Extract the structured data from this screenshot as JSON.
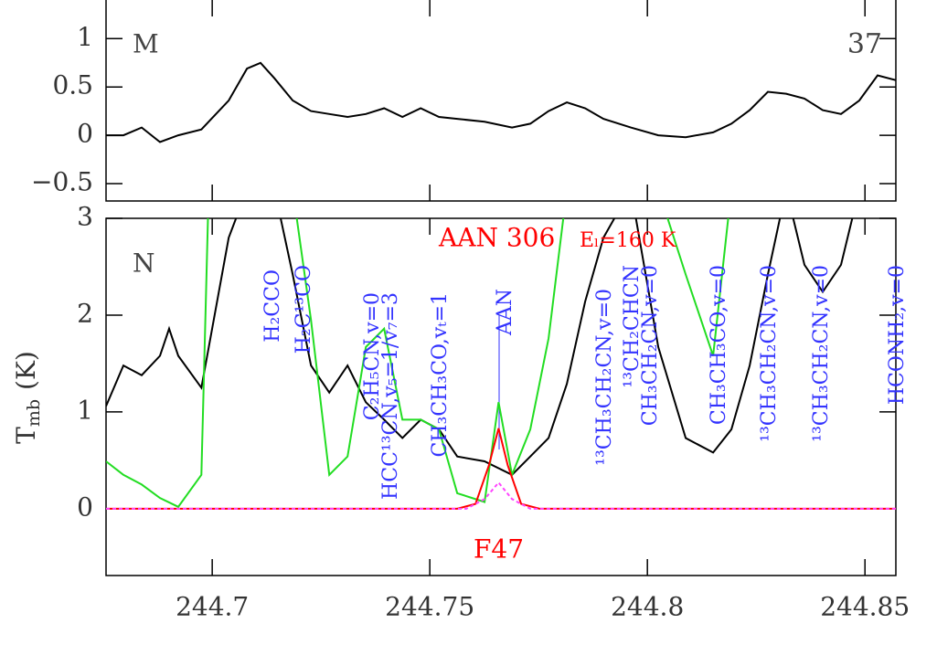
{
  "chart_data": [
    {
      "type": "line",
      "panel_label": "M",
      "corner_label": "37",
      "xlim": [
        244.6756,
        244.8571
      ],
      "ylim": [
        -0.68,
        1.4
      ],
      "xticks": [
        244.7,
        244.75,
        244.8,
        244.85
      ],
      "yticks": [
        {
          "value": -0.5,
          "label": "−0.5"
        },
        0,
        0.5,
        1
      ],
      "series": [
        {
          "color": "#000000",
          "x": [
            244.6756,
            244.6796,
            244.6838,
            244.688,
            244.6922,
            244.6975,
            244.7038,
            244.708,
            244.7111,
            244.7143,
            244.7185,
            244.7227,
            244.7269,
            244.7311,
            244.7353,
            244.7395,
            244.7437,
            244.7479,
            244.7521,
            244.7563,
            244.7626,
            244.7689,
            244.7731,
            244.7773,
            244.7815,
            244.7857,
            244.7899,
            244.7962,
            244.8025,
            244.8088,
            244.8151,
            244.8193,
            244.8235,
            244.8277,
            244.8319,
            244.8361,
            244.8403,
            244.8445,
            244.8487,
            244.8529,
            244.8571
          ],
          "values": [
            0,
            0,
            0.08,
            -0.07,
            0,
            0.06,
            0.36,
            0.69,
            0.75,
            0.59,
            0.36,
            0.25,
            0.22,
            0.19,
            0.22,
            0.28,
            0.19,
            0.28,
            0.19,
            0.17,
            0.14,
            0.08,
            0.12,
            0.25,
            0.34,
            0.28,
            0.17,
            0.08,
            0,
            -0.02,
            0.03,
            0.12,
            0.26,
            0.45,
            0.43,
            0.38,
            0.26,
            0.22,
            0.36,
            0.62,
            0.57
          ]
        }
      ]
    },
    {
      "type": "line",
      "panel_label": "N",
      "ylabel": {
        "main": "T",
        "sub": "mb",
        "unit": "(K)"
      },
      "xlim": [
        244.6756,
        244.8571
      ],
      "ylim": [
        -0.69,
        3
      ],
      "xticks": [
        244.7,
        244.75,
        244.8,
        244.85
      ],
      "yticks": [
        0,
        1,
        2,
        3
      ],
      "series": [
        {
          "color": "#000000",
          "x": [
            244.6756,
            244.6796,
            244.6838,
            244.688,
            244.6901,
            244.6922,
            244.6975,
            244.7038,
            244.708,
            244.7111,
            244.7143,
            244.7185,
            244.7227,
            244.7269,
            244.7311,
            244.7353,
            244.7395,
            244.7437,
            244.7479,
            244.7521,
            244.7563,
            244.7626,
            244.7689,
            244.7731,
            244.7773,
            244.7815,
            244.7857,
            244.7899,
            244.7962,
            244.8025,
            244.8088,
            244.8151,
            244.8193,
            244.8235,
            244.8277,
            244.8319,
            244.8361,
            244.8403,
            244.8445,
            244.8487,
            244.8529,
            244.8571
          ],
          "values": [
            1.06,
            1.48,
            1.38,
            1.58,
            1.86,
            1.58,
            1.25,
            2.8,
            3.3,
            3.3,
            3.3,
            2.42,
            1.48,
            1.2,
            1.48,
            1.1,
            0.92,
            0.73,
            0.92,
            0.82,
            0.54,
            0.49,
            0.35,
            0.54,
            0.73,
            1.29,
            2.14,
            2.8,
            3.3,
            1.67,
            0.73,
            0.58,
            0.82,
            1.48,
            2.42,
            3.3,
            2.52,
            2.24,
            2.52,
            3.3,
            3.3,
            3.3
          ]
        },
        {
          "color": "#22dd22",
          "x": [
            244.6756,
            244.6796,
            244.6838,
            244.688,
            244.6922,
            244.6975,
            244.6992,
            244.7038,
            244.708,
            244.7111,
            244.7143,
            244.7185,
            244.7227,
            244.7269,
            244.7311,
            244.7353,
            244.7395,
            244.7437,
            244.7479,
            244.7521,
            244.7563,
            244.7626,
            244.7658,
            244.7689,
            244.7731,
            244.7773,
            244.7815,
            244.7857,
            244.7899,
            244.7962,
            244.8025,
            244.8088,
            244.8151,
            244.8193,
            244.8235,
            244.8277,
            244.8319,
            244.8361,
            244.8403,
            244.8445,
            244.8487,
            244.8529,
            244.8571
          ],
          "values": [
            0.49,
            0.35,
            0.25,
            0.11,
            0.02,
            0.35,
            3.3,
            3.3,
            3.3,
            3.3,
            3.3,
            3.3,
            1.95,
            0.35,
            0.54,
            1.67,
            1.86,
            0.92,
            0.92,
            0.82,
            0.16,
            0.07,
            1.1,
            0.35,
            0.82,
            1.76,
            3.3,
            3.3,
            3.3,
            3.3,
            3.3,
            2.42,
            1.58,
            3.3,
            3.3,
            3.3,
            3.3,
            3.3,
            3.3,
            3.3,
            3.3,
            3.3,
            3.3
          ]
        },
        {
          "color": "#ff0000",
          "x": [
            244.6756,
            244.7563,
            244.7605,
            244.7636,
            244.7658,
            244.7679,
            244.771,
            244.7752,
            244.8571
          ],
          "values": [
            0,
            0,
            0.05,
            0.45,
            0.83,
            0.45,
            0.05,
            0,
            0
          ]
        },
        {
          "color": "#ff44ff",
          "dashed": true,
          "x": [
            244.6756,
            244.7584,
            244.7626,
            244.7658,
            244.7689,
            244.7731,
            244.8571
          ],
          "values": [
            0,
            0,
            0.1,
            0.27,
            0.1,
            0,
            0
          ]
        }
      ],
      "annotations": [
        {
          "text": "H₂CCO",
          "color": "#3333ff"
        },
        {
          "text": "H₂C¹³CO",
          "color": "#3333ff"
        },
        {
          "text": "C₂H₅CN,v=0",
          "color": "#3333ff"
        },
        {
          "text": "HCC¹³CN,v₅=1/v₇=3",
          "color": "#3333ff"
        },
        {
          "text": "CH₃CH₃CO,vₜ=1",
          "color": "#3333ff"
        },
        {
          "text": "AAN",
          "color": "#3333ff"
        },
        {
          "text": "¹³CH₃CH₂CN,v=0",
          "color": "#3333ff"
        },
        {
          "text": "¹³CH₂CHCN",
          "color": "#3333ff"
        },
        {
          "text": "CH₃CH₂CN,v=0",
          "color": "#3333ff"
        },
        {
          "text": "CH₃CH₃CO,v=0",
          "color": "#3333ff"
        },
        {
          "text": "¹³CH₃CH₂CN,v=0",
          "color": "#3333ff"
        },
        {
          "text": "¹³CH₃CH₂CN,v=0",
          "color": "#3333ff"
        },
        {
          "text": "HCONH₂,v=0",
          "color": "#3333ff"
        },
        {
          "text": "AAN 306",
          "color": "#ff0000"
        },
        {
          "text": "Eₗ=160 K",
          "color": "#ff0000"
        },
        {
          "text": "F47",
          "color": "#ff0000"
        }
      ]
    }
  ]
}
